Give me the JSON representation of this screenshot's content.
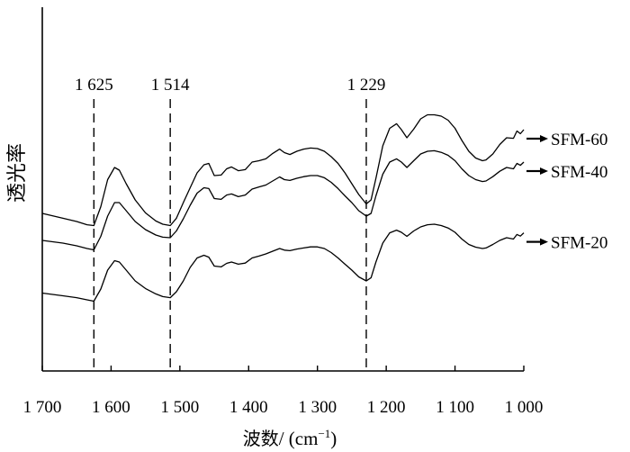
{
  "chart_data": {
    "type": "line",
    "title": "",
    "xlabel_prefix": "波数",
    "xlabel_unit": "/ (cm",
    "xlabel_exp": "−1",
    "xlabel_close": ")",
    "ylabel": "透光率",
    "xlim": [
      1700,
      1000
    ],
    "x_ticks": [
      1700,
      1600,
      1500,
      1400,
      1300,
      1200,
      1100,
      1000
    ],
    "x_tick_labels": [
      "1 700",
      "1 600",
      "1 500",
      "1 400",
      "1 300",
      "1 200",
      "1 100",
      "1 000"
    ],
    "y_ticks_shown": false,
    "grid": false,
    "peaks": [
      {
        "x": 1625,
        "label": "1 625"
      },
      {
        "x": 1514,
        "label": "1 514"
      },
      {
        "x": 1229,
        "label": "1 229"
      }
    ],
    "series": [
      {
        "name": "SFM-60",
        "x": [
          1700,
          1670,
          1650,
          1635,
          1625,
          1615,
          1605,
          1595,
          1588,
          1578,
          1565,
          1550,
          1535,
          1525,
          1514,
          1505,
          1495,
          1485,
          1475,
          1465,
          1458,
          1450,
          1440,
          1432,
          1425,
          1415,
          1405,
          1395,
          1385,
          1375,
          1365,
          1355,
          1348,
          1340,
          1330,
          1320,
          1310,
          1300,
          1290,
          1280,
          1270,
          1260,
          1250,
          1240,
          1229,
          1222,
          1215,
          1205,
          1195,
          1185,
          1178,
          1170,
          1160,
          1150,
          1140,
          1130,
          1120,
          1110,
          1100,
          1090,
          1080,
          1070,
          1060,
          1055,
          1045,
          1035,
          1025,
          1015,
          1010,
          1005,
          1000
        ],
        "y": [
          0.65,
          0.632,
          0.62,
          0.608,
          0.605,
          0.675,
          0.775,
          0.82,
          0.81,
          0.76,
          0.7,
          0.652,
          0.622,
          0.61,
          0.605,
          0.632,
          0.69,
          0.745,
          0.8,
          0.83,
          0.835,
          0.79,
          0.792,
          0.815,
          0.822,
          0.808,
          0.812,
          0.84,
          0.845,
          0.852,
          0.872,
          0.888,
          0.875,
          0.868,
          0.88,
          0.888,
          0.892,
          0.89,
          0.88,
          0.86,
          0.835,
          0.8,
          0.76,
          0.72,
          0.685,
          0.7,
          0.78,
          0.9,
          0.965,
          0.982,
          0.96,
          0.93,
          0.962,
          1.0,
          1.015,
          1.015,
          1.01,
          0.995,
          0.965,
          0.92,
          0.88,
          0.855,
          0.845,
          0.848,
          0.87,
          0.905,
          0.93,
          0.928,
          0.955,
          0.945,
          0.96
        ]
      },
      {
        "name": "SFM-40",
        "x": [
          1700,
          1670,
          1650,
          1635,
          1625,
          1615,
          1605,
          1595,
          1588,
          1578,
          1565,
          1550,
          1535,
          1525,
          1514,
          1505,
          1495,
          1485,
          1475,
          1465,
          1458,
          1450,
          1440,
          1432,
          1425,
          1415,
          1405,
          1395,
          1385,
          1375,
          1365,
          1355,
          1348,
          1340,
          1330,
          1320,
          1310,
          1300,
          1290,
          1280,
          1270,
          1260,
          1250,
          1240,
          1229,
          1222,
          1215,
          1205,
          1195,
          1185,
          1178,
          1170,
          1160,
          1150,
          1140,
          1130,
          1120,
          1110,
          1100,
          1090,
          1080,
          1070,
          1060,
          1055,
          1045,
          1035,
          1025,
          1015,
          1010,
          1005,
          1000
        ],
        "y": [
          0.55,
          0.54,
          0.53,
          0.52,
          0.515,
          0.565,
          0.64,
          0.69,
          0.69,
          0.66,
          0.62,
          0.59,
          0.57,
          0.562,
          0.56,
          0.585,
          0.63,
          0.68,
          0.725,
          0.745,
          0.742,
          0.705,
          0.702,
          0.718,
          0.722,
          0.712,
          0.718,
          0.74,
          0.748,
          0.755,
          0.77,
          0.785,
          0.775,
          0.772,
          0.78,
          0.786,
          0.79,
          0.79,
          0.782,
          0.765,
          0.742,
          0.715,
          0.69,
          0.66,
          0.64,
          0.65,
          0.715,
          0.795,
          0.84,
          0.852,
          0.84,
          0.82,
          0.845,
          0.87,
          0.88,
          0.882,
          0.876,
          0.865,
          0.845,
          0.815,
          0.79,
          0.775,
          0.768,
          0.77,
          0.786,
          0.806,
          0.82,
          0.815,
          0.835,
          0.828,
          0.84
        ]
      },
      {
        "name": "SFM-20",
        "x": [
          1700,
          1670,
          1650,
          1635,
          1625,
          1615,
          1605,
          1595,
          1588,
          1578,
          1565,
          1550,
          1535,
          1525,
          1514,
          1505,
          1495,
          1485,
          1475,
          1465,
          1458,
          1450,
          1440,
          1432,
          1425,
          1415,
          1405,
          1395,
          1385,
          1375,
          1365,
          1355,
          1348,
          1340,
          1330,
          1320,
          1310,
          1300,
          1290,
          1280,
          1270,
          1260,
          1250,
          1240,
          1229,
          1222,
          1215,
          1205,
          1195,
          1185,
          1178,
          1170,
          1160,
          1150,
          1140,
          1130,
          1120,
          1110,
          1100,
          1090,
          1080,
          1070,
          1060,
          1055,
          1045,
          1035,
          1025,
          1015,
          1010,
          1005,
          1000
        ],
        "y": [
          0.355,
          0.345,
          0.338,
          0.33,
          0.325,
          0.37,
          0.44,
          0.475,
          0.47,
          0.44,
          0.4,
          0.372,
          0.352,
          0.342,
          0.338,
          0.36,
          0.4,
          0.45,
          0.485,
          0.495,
          0.488,
          0.455,
          0.452,
          0.465,
          0.47,
          0.462,
          0.466,
          0.485,
          0.492,
          0.5,
          0.51,
          0.52,
          0.514,
          0.512,
          0.518,
          0.522,
          0.526,
          0.526,
          0.52,
          0.505,
          0.485,
          0.462,
          0.44,
          0.415,
          0.4,
          0.412,
          0.47,
          0.54,
          0.578,
          0.588,
          0.58,
          0.565,
          0.585,
          0.6,
          0.608,
          0.61,
          0.605,
          0.596,
          0.58,
          0.555,
          0.535,
          0.525,
          0.52,
          0.522,
          0.535,
          0.55,
          0.56,
          0.555,
          0.572,
          0.566,
          0.578
        ]
      }
    ]
  }
}
